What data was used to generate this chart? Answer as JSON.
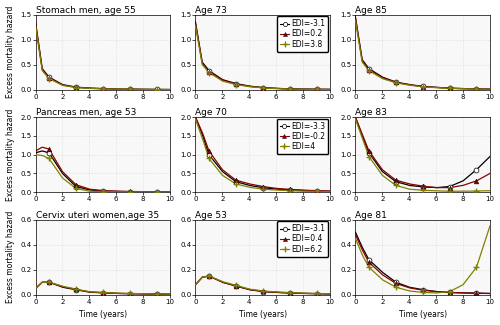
{
  "subplots": [
    {
      "title": "Stomach men, age 55",
      "edi_labels": [
        "EDI=-3.1",
        "EDI=0.2",
        "EDI=3.8"
      ],
      "ylim": [
        0,
        1.5
      ],
      "yticks": [
        0.0,
        0.5,
        1.0,
        1.5
      ],
      "row": 0,
      "col": 0,
      "curves": [
        {
          "t": [
            0,
            0.5,
            1,
            2,
            3,
            4,
            5,
            6,
            7,
            8,
            9,
            10
          ],
          "h": [
            1.35,
            0.42,
            0.25,
            0.1,
            0.05,
            0.03,
            0.02,
            0.01,
            0.01,
            0.005,
            0.003,
            0.002
          ],
          "color": "black",
          "marker": "o"
        },
        {
          "t": [
            0,
            0.5,
            1,
            2,
            3,
            4,
            5,
            6,
            7,
            8,
            9,
            10
          ],
          "h": [
            1.32,
            0.4,
            0.24,
            0.09,
            0.045,
            0.028,
            0.018,
            0.01,
            0.008,
            0.004,
            0.002,
            0.001
          ],
          "color": "darkred",
          "marker": "^"
        },
        {
          "t": [
            0,
            0.5,
            1,
            2,
            3,
            4,
            5,
            6,
            7,
            8,
            9,
            10
          ],
          "h": [
            1.28,
            0.38,
            0.22,
            0.085,
            0.04,
            0.025,
            0.015,
            0.009,
            0.007,
            0.003,
            0.002,
            0.001
          ],
          "color": "olive",
          "marker": "P"
        }
      ]
    },
    {
      "title": "Age 73",
      "edi_labels": [
        "EDI=-3.1",
        "EDI=0.2",
        "EDI=3.8"
      ],
      "ylim": [
        0,
        1.5
      ],
      "yticks": [
        0.0,
        0.5,
        1.0,
        1.5
      ],
      "row": 0,
      "col": 1,
      "show_legend": true,
      "curves": [
        {
          "t": [
            0,
            0.5,
            1,
            2,
            3,
            4,
            5,
            6,
            7,
            8,
            9,
            10
          ],
          "h": [
            1.35,
            0.55,
            0.38,
            0.2,
            0.12,
            0.07,
            0.04,
            0.025,
            0.015,
            0.01,
            0.007,
            0.005
          ],
          "color": "black",
          "marker": "o"
        },
        {
          "t": [
            0,
            0.5,
            1,
            2,
            3,
            4,
            5,
            6,
            7,
            8,
            9,
            10
          ],
          "h": [
            1.32,
            0.53,
            0.36,
            0.19,
            0.11,
            0.065,
            0.038,
            0.022,
            0.013,
            0.009,
            0.006,
            0.004
          ],
          "color": "darkred",
          "marker": "^"
        },
        {
          "t": [
            0,
            0.5,
            1,
            2,
            3,
            4,
            5,
            6,
            7,
            8,
            9,
            10
          ],
          "h": [
            1.28,
            0.5,
            0.34,
            0.17,
            0.1,
            0.058,
            0.034,
            0.019,
            0.011,
            0.007,
            0.005,
            0.003
          ],
          "color": "olive",
          "marker": "P"
        }
      ]
    },
    {
      "title": "Age 85",
      "edi_labels": [
        "EDI=-3.1",
        "EDI=0.2",
        "EDI=3.8"
      ],
      "ylim": [
        0,
        1.5
      ],
      "yticks": [
        0.0,
        0.5,
        1.0,
        1.5
      ],
      "row": 0,
      "col": 2,
      "curves": [
        {
          "t": [
            0,
            0.5,
            1,
            2,
            3,
            4,
            5,
            6,
            7,
            8,
            9,
            10
          ],
          "h": [
            1.45,
            0.6,
            0.42,
            0.25,
            0.15,
            0.1,
            0.065,
            0.045,
            0.03,
            0.02,
            0.015,
            0.01
          ],
          "color": "black",
          "marker": "o"
        },
        {
          "t": [
            0,
            0.5,
            1,
            2,
            3,
            4,
            5,
            6,
            7,
            8,
            9,
            10
          ],
          "h": [
            1.42,
            0.58,
            0.4,
            0.24,
            0.145,
            0.095,
            0.06,
            0.042,
            0.028,
            0.018,
            0.013,
            0.009
          ],
          "color": "darkred",
          "marker": "^"
        },
        {
          "t": [
            0,
            0.5,
            1,
            2,
            3,
            4,
            5,
            6,
            7,
            8,
            9,
            10
          ],
          "h": [
            1.38,
            0.55,
            0.38,
            0.22,
            0.135,
            0.088,
            0.055,
            0.038,
            0.025,
            0.016,
            0.011,
            0.008
          ],
          "color": "olive",
          "marker": "P"
        }
      ]
    },
    {
      "title": "Pancreas men, age 53",
      "edi_labels": [
        "EDI=-3.3",
        "EDI=-0.2",
        "EDI=4"
      ],
      "ylim": [
        0,
        2.0
      ],
      "yticks": [
        0.0,
        0.5,
        1.0,
        1.5,
        2.0
      ],
      "row": 1,
      "col": 0,
      "curves": [
        {
          "t": [
            0,
            0.5,
            1,
            2,
            3,
            4,
            5,
            6,
            7,
            8,
            9,
            10
          ],
          "h": [
            1.05,
            1.1,
            1.05,
            0.5,
            0.15,
            0.06,
            0.03,
            0.02,
            0.015,
            0.01,
            0.008,
            0.006
          ],
          "color": "black",
          "marker": "o"
        },
        {
          "t": [
            0,
            0.5,
            1,
            2,
            3,
            4,
            5,
            6,
            7,
            8,
            9,
            10
          ],
          "h": [
            1.1,
            1.2,
            1.15,
            0.55,
            0.2,
            0.08,
            0.04,
            0.025,
            0.018,
            0.012,
            0.009,
            0.007
          ],
          "color": "darkred",
          "marker": "^"
        },
        {
          "t": [
            0,
            0.5,
            1,
            2,
            3,
            4,
            5,
            6,
            7,
            8,
            9,
            10
          ],
          "h": [
            1.0,
            0.98,
            0.9,
            0.38,
            0.1,
            0.025,
            0.012,
            0.008,
            0.006,
            0.005,
            0.004,
            0.003
          ],
          "color": "olive",
          "marker": "P"
        }
      ]
    },
    {
      "title": "Age 70",
      "edi_labels": [
        "EDI=-3.3",
        "EDI=-0.2",
        "EDI=4"
      ],
      "ylim": [
        0,
        2.0
      ],
      "yticks": [
        0.0,
        0.5,
        1.0,
        1.5,
        2.0
      ],
      "row": 1,
      "col": 1,
      "show_legend": true,
      "curves": [
        {
          "t": [
            0,
            0.5,
            1,
            2,
            3,
            4,
            5,
            6,
            7,
            8,
            9,
            10
          ],
          "h": [
            2.0,
            1.55,
            1.0,
            0.55,
            0.28,
            0.18,
            0.12,
            0.08,
            0.06,
            0.04,
            0.03,
            0.025
          ],
          "color": "black",
          "marker": "o"
        },
        {
          "t": [
            0,
            0.5,
            1,
            2,
            3,
            4,
            5,
            6,
            7,
            8,
            9,
            10
          ],
          "h": [
            2.0,
            1.6,
            1.1,
            0.6,
            0.32,
            0.22,
            0.15,
            0.1,
            0.075,
            0.055,
            0.04,
            0.03
          ],
          "color": "darkred",
          "marker": "^"
        },
        {
          "t": [
            0,
            0.5,
            1,
            2,
            3,
            4,
            5,
            6,
            7,
            8,
            9,
            10
          ],
          "h": [
            1.95,
            1.45,
            0.9,
            0.45,
            0.22,
            0.13,
            0.08,
            0.055,
            0.04,
            0.028,
            0.02,
            0.015
          ],
          "color": "olive",
          "marker": "P"
        }
      ]
    },
    {
      "title": "Age 83",
      "edi_labels": [
        "EDI=-3.3",
        "EDI=-0.2",
        "EDI=4"
      ],
      "ylim": [
        0,
        2.0
      ],
      "yticks": [
        0.0,
        0.5,
        1.0,
        1.5,
        2.0
      ],
      "row": 1,
      "col": 2,
      "curves": [
        {
          "t": [
            0,
            0.5,
            1,
            2,
            3,
            4,
            5,
            6,
            7,
            8,
            9,
            10
          ],
          "h": [
            2.0,
            1.5,
            1.05,
            0.55,
            0.28,
            0.18,
            0.14,
            0.12,
            0.15,
            0.3,
            0.6,
            0.95
          ],
          "color": "black",
          "marker": "o"
        },
        {
          "t": [
            0,
            0.5,
            1,
            2,
            3,
            4,
            5,
            6,
            7,
            8,
            9,
            10
          ],
          "h": [
            2.0,
            1.55,
            1.1,
            0.6,
            0.32,
            0.22,
            0.16,
            0.12,
            0.12,
            0.18,
            0.3,
            0.5
          ],
          "color": "darkred",
          "marker": "^"
        },
        {
          "t": [
            0,
            0.5,
            1,
            2,
            3,
            4,
            5,
            6,
            7,
            8,
            9,
            10
          ],
          "h": [
            1.95,
            1.45,
            0.95,
            0.45,
            0.18,
            0.08,
            0.05,
            0.035,
            0.025,
            0.025,
            0.03,
            0.04
          ],
          "color": "olive",
          "marker": "P"
        }
      ]
    },
    {
      "title": "Cervix uteri women,age 35",
      "edi_labels": [
        "EDI=-3.1",
        "EDI=0.4",
        "EDI=6.2"
      ],
      "ylim": [
        0,
        0.6
      ],
      "yticks": [
        0.0,
        0.2,
        0.4,
        0.6
      ],
      "row": 2,
      "col": 0,
      "curves": [
        {
          "t": [
            0,
            0.5,
            1,
            2,
            3,
            4,
            5,
            6,
            7,
            8,
            9,
            10
          ],
          "h": [
            0.05,
            0.1,
            0.1,
            0.06,
            0.04,
            0.02,
            0.015,
            0.01,
            0.008,
            0.006,
            0.005,
            0.004
          ],
          "color": "black",
          "marker": "o"
        },
        {
          "t": [
            0,
            0.5,
            1,
            2,
            3,
            4,
            5,
            6,
            7,
            8,
            9,
            10
          ],
          "h": [
            0.05,
            0.1,
            0.1,
            0.065,
            0.042,
            0.022,
            0.016,
            0.011,
            0.009,
            0.007,
            0.005,
            0.004
          ],
          "color": "darkred",
          "marker": "^"
        },
        {
          "t": [
            0,
            0.5,
            1,
            2,
            3,
            4,
            5,
            6,
            7,
            8,
            9,
            10
          ],
          "h": [
            0.05,
            0.1,
            0.1,
            0.068,
            0.045,
            0.024,
            0.018,
            0.013,
            0.01,
            0.008,
            0.006,
            0.005
          ],
          "color": "olive",
          "marker": "P"
        }
      ]
    },
    {
      "title": "Age 53",
      "edi_labels": [
        "EDI=-3.1",
        "EDI=0.4",
        "EDI=6.2"
      ],
      "ylim": [
        0,
        0.6
      ],
      "yticks": [
        0.0,
        0.2,
        0.4,
        0.6
      ],
      "row": 2,
      "col": 1,
      "show_legend": true,
      "curves": [
        {
          "t": [
            0,
            0.5,
            1,
            2,
            3,
            4,
            5,
            6,
            7,
            8,
            9,
            10
          ],
          "h": [
            0.08,
            0.14,
            0.15,
            0.1,
            0.07,
            0.04,
            0.025,
            0.018,
            0.013,
            0.01,
            0.008,
            0.006
          ],
          "color": "black",
          "marker": "o"
        },
        {
          "t": [
            0,
            0.5,
            1,
            2,
            3,
            4,
            5,
            6,
            7,
            8,
            9,
            10
          ],
          "h": [
            0.08,
            0.14,
            0.15,
            0.1,
            0.07,
            0.042,
            0.027,
            0.02,
            0.015,
            0.011,
            0.009,
            0.007
          ],
          "color": "darkred",
          "marker": "^"
        },
        {
          "t": [
            0,
            0.5,
            1,
            2,
            3,
            4,
            5,
            6,
            7,
            8,
            9,
            10
          ],
          "h": [
            0.08,
            0.14,
            0.15,
            0.105,
            0.075,
            0.045,
            0.03,
            0.022,
            0.017,
            0.013,
            0.01,
            0.008
          ],
          "color": "olive",
          "marker": "P"
        }
      ]
    },
    {
      "title": "Age 81",
      "edi_labels": [
        "EDI=-3.1",
        "EDI=0.4",
        "EDI=6.2"
      ],
      "ylim": [
        0,
        0.6
      ],
      "yticks": [
        0.0,
        0.2,
        0.4,
        0.6
      ],
      "row": 2,
      "col": 2,
      "curves": [
        {
          "t": [
            0,
            0.5,
            1,
            2,
            3,
            4,
            5,
            6,
            7,
            8,
            9,
            10
          ],
          "h": [
            0.5,
            0.38,
            0.28,
            0.18,
            0.1,
            0.06,
            0.04,
            0.025,
            0.018,
            0.015,
            0.012,
            0.01
          ],
          "color": "black",
          "marker": "o"
        },
        {
          "t": [
            0,
            0.5,
            1,
            2,
            3,
            4,
            5,
            6,
            7,
            8,
            9,
            10
          ],
          "h": [
            0.48,
            0.36,
            0.26,
            0.16,
            0.09,
            0.055,
            0.036,
            0.024,
            0.018,
            0.014,
            0.012,
            0.01
          ],
          "color": "darkred",
          "marker": "^"
        },
        {
          "t": [
            0,
            0.5,
            1,
            2,
            3,
            4,
            5,
            6,
            7,
            8,
            9,
            10
          ],
          "h": [
            0.45,
            0.32,
            0.22,
            0.12,
            0.06,
            0.03,
            0.018,
            0.014,
            0.025,
            0.08,
            0.22,
            0.55
          ],
          "color": "olive",
          "marker": "P"
        }
      ]
    }
  ],
  "marker_times": [
    1,
    3,
    5,
    7,
    9
  ],
  "xlabel": "Time (years)",
  "ylabel": "Excess mortality hazard",
  "bg_color": "#f8f8f8",
  "grid_color": "#cccccc",
  "title_fontsize": 6.5,
  "label_fontsize": 5.5,
  "tick_fontsize": 5,
  "legend_fontsize": 5.5
}
